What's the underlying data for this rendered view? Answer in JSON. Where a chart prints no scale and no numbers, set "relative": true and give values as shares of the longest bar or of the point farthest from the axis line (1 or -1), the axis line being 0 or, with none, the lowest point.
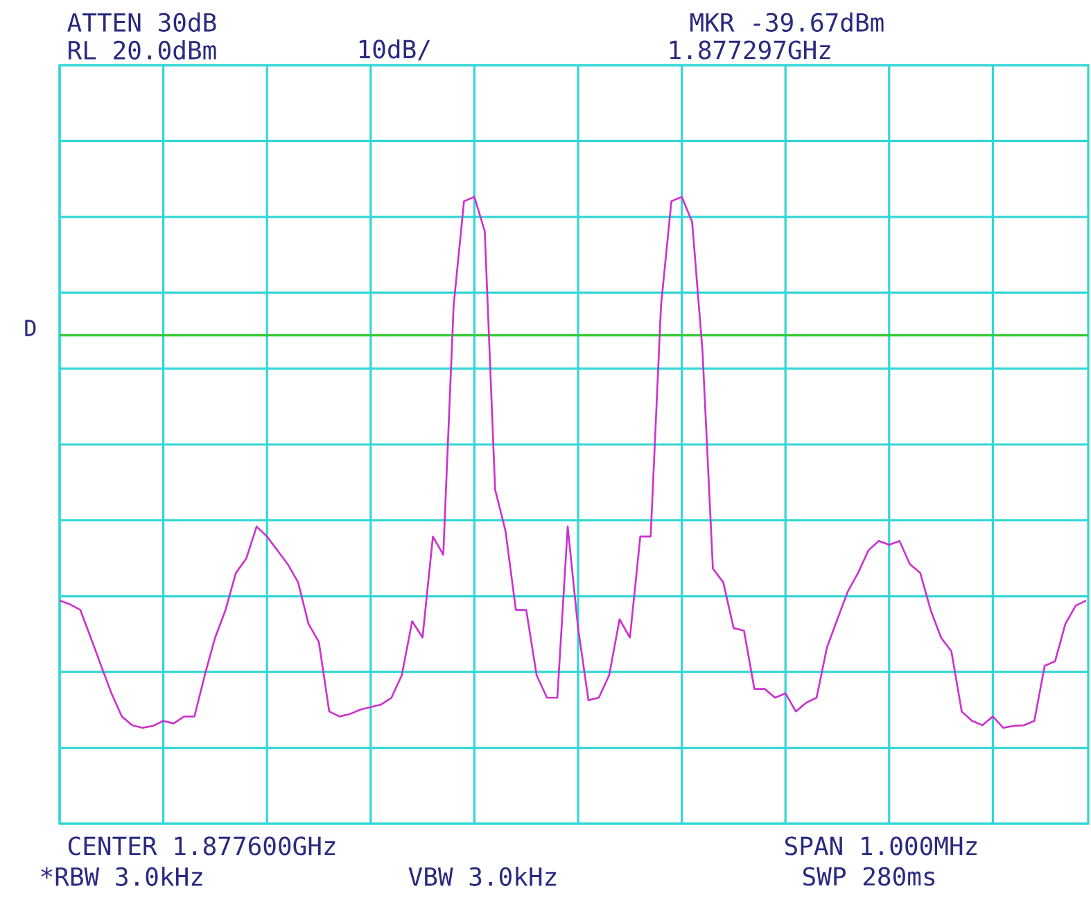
{
  "chart_data": {
    "type": "line",
    "relative": true,
    "grid": true,
    "marker": "none",
    "categories": [
      null,
      null,
      null,
      null,
      null,
      null,
      null,
      null,
      null,
      null,
      null,
      null,
      null,
      null,
      null,
      null,
      null,
      null,
      null,
      null,
      null,
      null,
      null,
      null,
      null,
      null,
      null,
      null,
      null,
      null,
      null,
      null,
      null,
      null,
      null,
      null,
      null,
      null,
      null,
      null,
      null,
      null,
      null,
      null,
      null,
      null,
      null,
      null,
      null,
      null,
      null,
      null,
      null,
      null,
      null,
      null,
      null,
      null,
      null,
      null,
      null,
      null,
      null,
      null,
      null,
      null,
      null,
      null,
      null,
      null,
      null,
      null,
      null,
      null,
      null,
      null,
      null,
      null,
      null,
      null,
      null,
      null,
      null,
      null,
      null,
      null,
      null,
      null,
      null,
      null,
      null,
      null,
      null,
      null,
      null,
      null,
      null,
      null,
      null,
      null
    ],
    "series": [
      {
        "color": "#cc33cc",
        "values": [
          0.356,
          0.35,
          0.341,
          0.297,
          0.252,
          0.208,
          0.171,
          0.157,
          0.153,
          0.156,
          0.164,
          0.16,
          0.171,
          0.171,
          0.237,
          0.297,
          0.341,
          0.4,
          0.423,
          0.474,
          0.458,
          0.436,
          0.414,
          0.385,
          0.319,
          0.29,
          0.179,
          0.171,
          0.175,
          0.182,
          0.186,
          0.19,
          0.201,
          0.237,
          0.323,
          0.297,
          0.458,
          0.429,
          0.827,
          0.993,
          1,
          0.945,
          0.533,
          0.467,
          0.341,
          0.341,
          0.237,
          0.201,
          0.201,
          0.474,
          0.312,
          0.197,
          0.201,
          0.237,
          0.326,
          0.297,
          0.458,
          0.458,
          0.827,
          0.993,
          1,
          0.96,
          0.754,
          0.407,
          0.385,
          0.312,
          0.308,
          0.215,
          0.215,
          0.201,
          0.208,
          0.179,
          0.193,
          0.201,
          0.281,
          0.326,
          0.37,
          0.4,
          0.436,
          0.451,
          0.445,
          0.451,
          0.414,
          0.4,
          0.341,
          0.297,
          0.275,
          0.179,
          0.164,
          0.157,
          0.171,
          0.153,
          0.156,
          0.157,
          0.164,
          0.252,
          0.259,
          0.319,
          0.348,
          0.356
        ]
      }
    ],
    "ref_lines": [
      {
        "axis": "y",
        "value": 0.779,
        "label": "D",
        "color": "#33cc33"
      }
    ],
    "annotations": [
      "ATTEN 30dB",
      "RL 20.0dBm",
      "10dB/",
      "MKR -39.67dBm",
      "1.877297GHz",
      "CENTER 1.877600GHz",
      "SPAN 1.000MHz",
      "*RBW 3.0kHz",
      "VBW 3.0kHz",
      "SWP 280ms"
    ]
  }
}
